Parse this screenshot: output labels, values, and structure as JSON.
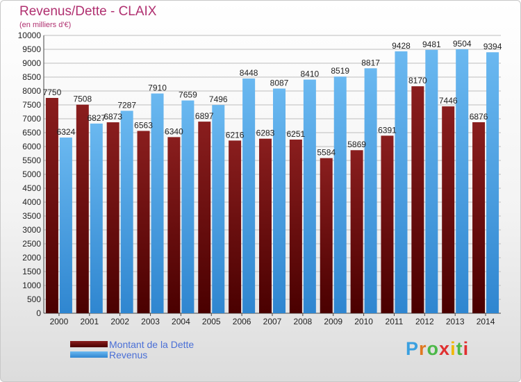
{
  "header": {
    "title": "Revenus/Dette - CLAIX",
    "subtitle": "(en milliers d'€)"
  },
  "legend": {
    "dette_label": "Montant de la Dette",
    "revenus_label": "Revenus"
  },
  "logo": {
    "text": "Proxiti",
    "letter_colors": [
      "#3aa0e0",
      "#e07820",
      "#4cb848",
      "#e03030",
      "#f0b800",
      "#4cb848",
      "#e03030"
    ]
  },
  "colors": {
    "dette_top": "#8a1e1e",
    "dette_bottom": "#4a0000",
    "revenus_top": "#6ab8f0",
    "revenus_bottom": "#2f86d0",
    "grid": "#bdbdbd",
    "title": "#b03070"
  },
  "chart_data": {
    "type": "bar",
    "title": "Revenus/Dette - CLAIX",
    "subtitle": "(en milliers d'€)",
    "categories": [
      "2000",
      "2001",
      "2002",
      "2003",
      "2004",
      "2005",
      "2006",
      "2007",
      "2008",
      "2009",
      "2010",
      "2011",
      "2012",
      "2013",
      "2014"
    ],
    "series": [
      {
        "name": "Montant de la Dette",
        "values": [
          7750,
          7508,
          6873,
          6563,
          6340,
          6897,
          6216,
          6283,
          6251,
          5584,
          5869,
          6391,
          8170,
          7446,
          6876
        ],
        "labels": [
          "7750",
          "7508",
          "6873",
          "6563",
          "6340",
          "6897",
          "6216",
          "6283",
          "6251",
          "5584",
          "5869",
          "6391",
          "8170",
          "7446",
          "6876"
        ]
      },
      {
        "name": "Revenus",
        "values": [
          6324,
          6827,
          7287,
          7910,
          7659,
          7496,
          8448,
          8087,
          8410,
          8519,
          8817,
          9428,
          9481,
          9504,
          9394
        ],
        "labels": [
          "6324",
          "6827",
          "7287",
          "7910",
          "7659",
          "7496",
          "8448",
          "8087",
          "8410",
          "8519",
          "8817",
          "9428",
          "9481",
          "9504",
          "9394"
        ]
      }
    ],
    "ylim": [
      0,
      10000
    ],
    "yticks": [
      0,
      500,
      1000,
      1500,
      2000,
      2500,
      3000,
      3500,
      4000,
      4500,
      5000,
      5500,
      6000,
      6500,
      7000,
      7500,
      8000,
      8500,
      9000,
      9500,
      10000
    ],
    "grid": true,
    "legend_position": "bottom-left"
  }
}
